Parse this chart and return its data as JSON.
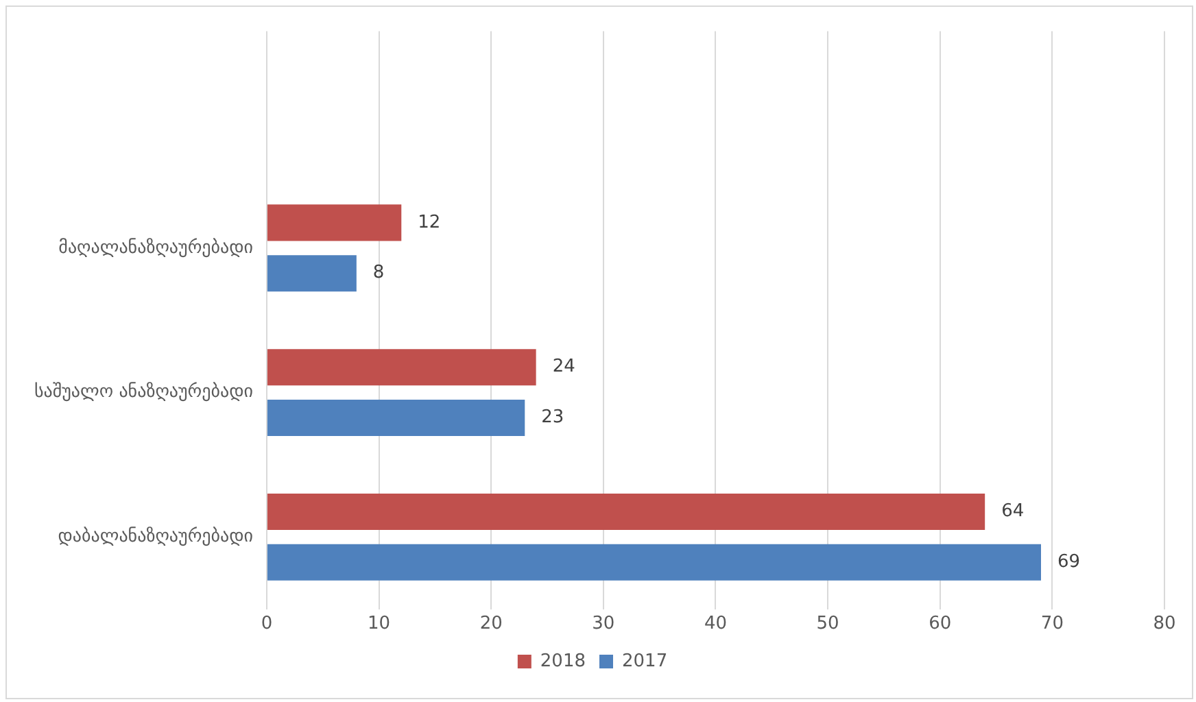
{
  "chart_data": {
    "type": "bar",
    "orientation": "horizontal",
    "categories": [
      null,
      "მაღალანაზღაურებადი",
      "საშუალო ანაზღაურებადი",
      "დაბალანაზღაურებადი"
    ],
    "series": [
      {
        "name": "2018",
        "color": "#c0504d",
        "values": [
          null,
          12,
          24,
          64
        ]
      },
      {
        "name": "2017",
        "color": "#4f81bd",
        "values": [
          null,
          8,
          23,
          69
        ]
      }
    ],
    "xlim": [
      0,
      80
    ],
    "xticks": [
      0,
      10,
      20,
      30,
      40,
      50,
      60,
      70,
      80
    ],
    "grid": "x",
    "legend": "bottom",
    "data_labels": true
  }
}
